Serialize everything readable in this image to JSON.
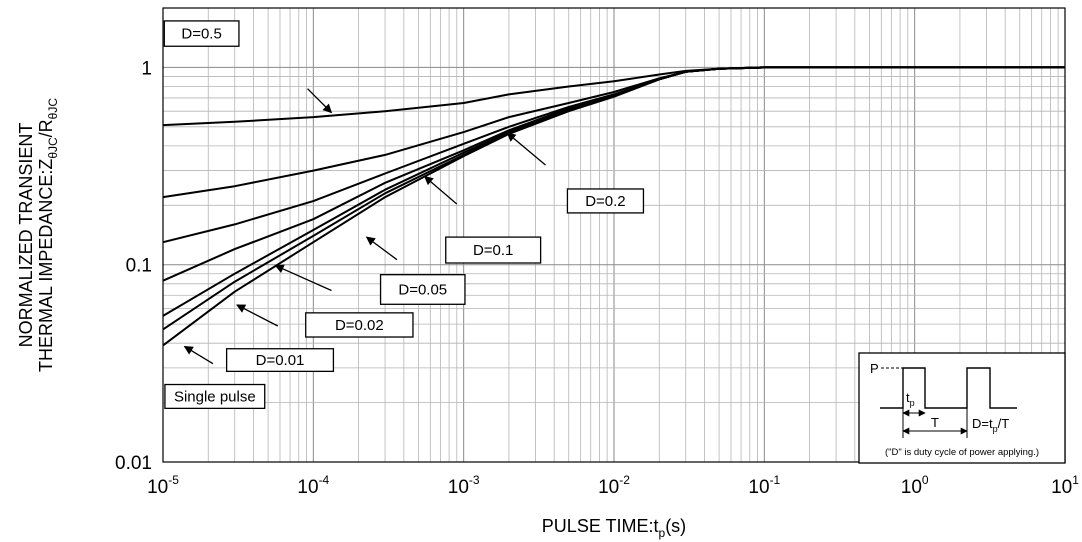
{
  "chart_data": {
    "type": "line",
    "xscale": "log",
    "yscale": "log",
    "xlim": [
      1e-05,
      10
    ],
    "ylim": [
      0.01,
      2
    ],
    "grid": true,
    "xlabel": {
      "base": "PULSE TIME:t",
      "sub": "p",
      "tail": "(s)"
    },
    "ylabel": {
      "line1": "NORMALIZED TRANSIENT",
      "line2_base": "THERMAL IMPEDANCE:Z",
      "line2_sub1": "θJC",
      "line2_mid": "/R",
      "line2_sub2": "θJC"
    },
    "x_ticks": [
      {
        "value": 1e-05,
        "base": "10",
        "exp": "-5"
      },
      {
        "value": 0.0001,
        "base": "10",
        "exp": "-4"
      },
      {
        "value": 0.001,
        "base": "10",
        "exp": "-3"
      },
      {
        "value": 0.01,
        "base": "10",
        "exp": "-2"
      },
      {
        "value": 0.1,
        "base": "10",
        "exp": "-1"
      },
      {
        "value": 1,
        "base": "10",
        "exp": "0"
      },
      {
        "value": 10,
        "base": "10",
        "exp": "1"
      }
    ],
    "y_ticks": [
      {
        "value": 0.01,
        "label": "0.01"
      },
      {
        "value": 0.1,
        "label": "0.1"
      },
      {
        "value": 1,
        "label": "1"
      }
    ],
    "series": [
      {
        "name": "D=0.5",
        "x": [
          1e-05,
          3e-05,
          0.0001,
          0.0003,
          0.001,
          0.002,
          0.005,
          0.01,
          0.02,
          0.03,
          0.05,
          0.1,
          1,
          10
        ],
        "y": [
          0.51,
          0.53,
          0.56,
          0.6,
          0.66,
          0.73,
          0.8,
          0.85,
          0.92,
          0.96,
          0.985,
          1.0,
          1.0,
          1.0
        ]
      },
      {
        "name": "D=0.2",
        "x": [
          1e-05,
          3e-05,
          0.0001,
          0.0003,
          0.001,
          0.002,
          0.005,
          0.01,
          0.02,
          0.03,
          0.05,
          0.1,
          1,
          10
        ],
        "y": [
          0.22,
          0.25,
          0.3,
          0.36,
          0.47,
          0.56,
          0.66,
          0.75,
          0.88,
          0.95,
          0.985,
          1.0,
          1.0,
          1.0
        ]
      },
      {
        "name": "D=0.1",
        "x": [
          1e-05,
          3e-05,
          0.0001,
          0.0003,
          0.001,
          0.002,
          0.005,
          0.01,
          0.02,
          0.03,
          0.05,
          0.1,
          1,
          10
        ],
        "y": [
          0.13,
          0.16,
          0.21,
          0.29,
          0.41,
          0.5,
          0.63,
          0.73,
          0.87,
          0.95,
          0.985,
          1.0,
          1.0,
          1.0
        ]
      },
      {
        "name": "D=0.05",
        "x": [
          1e-05,
          3e-05,
          0.0001,
          0.0003,
          0.001,
          0.002,
          0.005,
          0.01,
          0.02,
          0.03,
          0.05,
          0.1,
          1,
          10
        ],
        "y": [
          0.083,
          0.12,
          0.17,
          0.26,
          0.38,
          0.48,
          0.62,
          0.72,
          0.87,
          0.95,
          0.985,
          1.0,
          1.0,
          1.0
        ]
      },
      {
        "name": "D=0.02",
        "x": [
          1e-05,
          3e-05,
          0.0001,
          0.0003,
          0.001,
          0.002,
          0.005,
          0.01,
          0.02,
          0.03,
          0.05,
          0.1,
          1,
          10
        ],
        "y": [
          0.055,
          0.09,
          0.15,
          0.24,
          0.37,
          0.47,
          0.61,
          0.72,
          0.87,
          0.95,
          0.985,
          1.0,
          1.0,
          1.0
        ]
      },
      {
        "name": "D=0.01",
        "x": [
          1e-05,
          3e-05,
          0.0001,
          0.0003,
          0.001,
          0.002,
          0.005,
          0.01,
          0.02,
          0.03,
          0.05,
          0.1,
          1,
          10
        ],
        "y": [
          0.047,
          0.082,
          0.14,
          0.23,
          0.36,
          0.465,
          0.605,
          0.715,
          0.87,
          0.95,
          0.985,
          1.0,
          1.0,
          1.0
        ]
      },
      {
        "name": "Single pulse",
        "x": [
          1e-05,
          3e-05,
          0.0001,
          0.0003,
          0.001,
          0.002,
          0.005,
          0.01,
          0.02,
          0.03,
          0.05,
          0.1,
          1,
          10
        ],
        "y": [
          0.039,
          0.073,
          0.13,
          0.22,
          0.355,
          0.46,
          0.6,
          0.71,
          0.87,
          0.95,
          0.985,
          1.0,
          1.0,
          1.0
        ]
      }
    ],
    "annotations": [
      {
        "label": "D=0.5",
        "box": [
          1.02e-05,
          3.2e-05,
          1.28,
          1.72
        ],
        "arrow_from": [
          9.15e-05,
          0.78
        ],
        "arrow_to": [
          0.000132,
          0.59
        ]
      },
      {
        "label": "D=0.2",
        "box": [
          0.0049,
          0.0157,
          0.183,
          0.242
        ],
        "arrow_from": [
          0.0035,
          0.32
        ],
        "arrow_to": [
          0.00195,
          0.465
        ]
      },
      {
        "label": "D=0.1",
        "box": [
          0.00076,
          0.00325,
          0.102,
          0.138
        ],
        "arrow_from": [
          0.0009,
          0.203
        ],
        "arrow_to": [
          0.00055,
          0.28
        ]
      },
      {
        "label": "D=0.05",
        "box": [
          0.00028,
          0.00102,
          0.063,
          0.089
        ],
        "arrow_from": [
          0.00036,
          0.106
        ],
        "arrow_to": [
          0.000226,
          0.138
        ]
      },
      {
        "label": "D=0.02",
        "box": [
          8.9e-05,
          0.00046,
          0.043,
          0.057
        ],
        "arrow_from": [
          0.000132,
          0.074
        ],
        "arrow_to": [
          5.6e-05,
          0.099
        ]
      },
      {
        "label": "D=0.01",
        "box": [
          2.65e-05,
          0.000136,
          0.0288,
          0.0375
        ],
        "arrow_from": [
          5.8e-05,
          0.0489
        ],
        "arrow_to": [
          3.1e-05,
          0.0625
        ]
      },
      {
        "label": "Single pulse",
        "box": [
          1.03e-05,
          4.75e-05,
          0.0187,
          0.0247
        ],
        "arrow_from": [
          2.15e-05,
          0.0315
        ],
        "arrow_to": [
          1.39e-05,
          0.0385
        ]
      }
    ],
    "inset": {
      "p_label": "P",
      "tp_label": {
        "base": "t",
        "sub": "p"
      },
      "t_label": "T",
      "formula": {
        "lead": "D=t",
        "sub": "p",
        "tail": "/T"
      },
      "note": "(\"D\" is duty cycle of power applying.)"
    }
  }
}
